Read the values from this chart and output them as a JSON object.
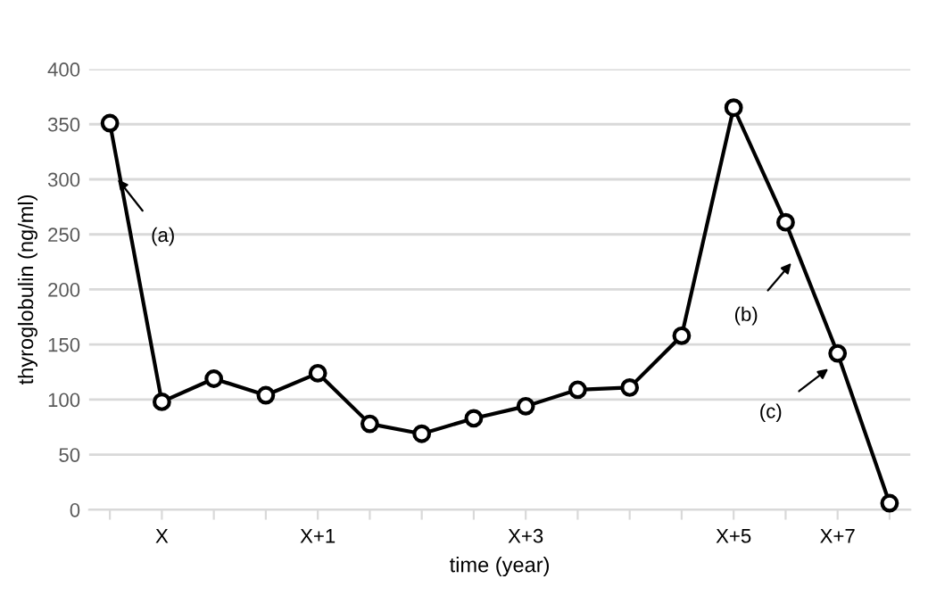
{
  "chart_data": {
    "type": "line",
    "xlabel": "time (year)",
    "ylabel": "thyroglobulin (ng/ml)",
    "categories": [
      null,
      "X",
      null,
      null,
      "X+1",
      null,
      null,
      null,
      "X+3",
      null,
      null,
      null,
      "X+5",
      null,
      "X+7",
      null
    ],
    "series": [
      {
        "color": "#000000",
        "values": [
          351,
          98,
          119,
          104,
          124,
          78,
          69,
          83,
          94,
          109,
          111,
          158,
          365,
          261,
          142,
          6
        ]
      }
    ],
    "ylim": [
      0,
      400
    ],
    "yticks": [
      0,
      50,
      100,
      150,
      200,
      250,
      300,
      350,
      400
    ],
    "grid": "y",
    "marker": "circle",
    "line_style": "solid",
    "annotations": [
      "(a)",
      "(b)",
      "(c)"
    ]
  }
}
